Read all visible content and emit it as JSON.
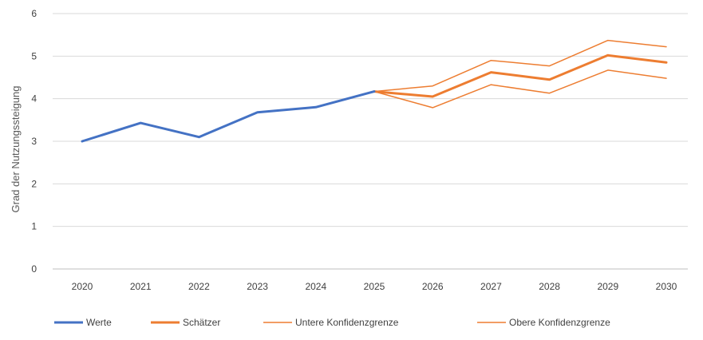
{
  "chart_data": {
    "type": "line",
    "title": "",
    "xlabel": "",
    "ylabel": "Grad der Nutzungssteigung",
    "categories": [
      "2020",
      "2021",
      "2022",
      "2023",
      "2024",
      "2025",
      "2026",
      "2027",
      "2028",
      "2029",
      "2030"
    ],
    "ylim": [
      0,
      6
    ],
    "yticks": [
      0,
      1,
      2,
      3,
      4,
      5,
      6
    ],
    "grid": "horizontal",
    "legend_position": "bottom",
    "series": [
      {
        "name": "Werte",
        "color": "#4472C4",
        "width": "thick",
        "values": [
          3.0,
          3.43,
          3.1,
          3.68,
          3.8,
          4.17,
          null,
          null,
          null,
          null,
          null
        ]
      },
      {
        "name": "Schätzer",
        "color": "#ED7D31",
        "width": "thick",
        "values": [
          null,
          null,
          null,
          null,
          null,
          4.17,
          4.05,
          4.62,
          4.45,
          5.02,
          4.85
        ]
      },
      {
        "name": "Untere Konfidenzgrenze",
        "color": "#ED7D31",
        "width": "thin",
        "values": [
          null,
          null,
          null,
          null,
          null,
          4.17,
          3.79,
          4.33,
          4.13,
          4.67,
          4.48
        ]
      },
      {
        "name": "Obere Konfidenzgrenze",
        "color": "#ED7D31",
        "width": "thin",
        "values": [
          null,
          null,
          null,
          null,
          null,
          4.17,
          4.3,
          4.9,
          4.77,
          5.37,
          5.22
        ]
      }
    ]
  }
}
